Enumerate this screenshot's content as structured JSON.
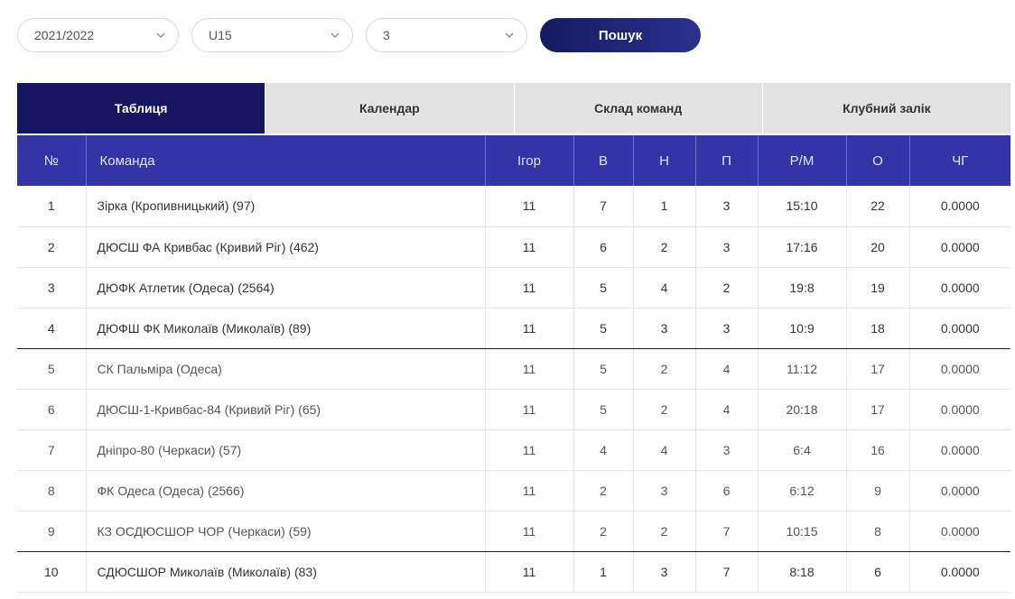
{
  "filters": {
    "season": "2021/2022",
    "age_group": "U15",
    "group": "3",
    "search_label": "Пошук"
  },
  "tabs": [
    "Таблиця",
    "Календар",
    "Склад команд",
    "Клубний залік"
  ],
  "table": {
    "headers": [
      "№",
      "Команда",
      "Ігор",
      "В",
      "Н",
      "П",
      "Р/М",
      "О",
      "ЧГ"
    ],
    "rows": [
      [
        "1",
        "Зірка (Кропивницький) (97)",
        "11",
        "7",
        "1",
        "3",
        "15:10",
        "22",
        "0.0000"
      ],
      [
        "2",
        "ДЮСШ ФА Кривбас (Кривий Ріг) (462)",
        "11",
        "6",
        "2",
        "3",
        "17:16",
        "20",
        "0.0000"
      ],
      [
        "3",
        "ДЮФК Атлетик (Одеса) (2564)",
        "11",
        "5",
        "4",
        "2",
        "19:8",
        "19",
        "0.0000"
      ],
      [
        "4",
        "ДЮФШ ФК Миколаїв (Миколаїв) (89)",
        "11",
        "5",
        "3",
        "3",
        "10:9",
        "18",
        "0.0000"
      ],
      [
        "5",
        "СК Пальміра (Одеса)",
        "11",
        "5",
        "2",
        "4",
        "11:12",
        "17",
        "0.0000"
      ],
      [
        "6",
        "ДЮСШ-1-Кривбас-84 (Кривий Ріг) (65)",
        "11",
        "5",
        "2",
        "4",
        "20:18",
        "17",
        "0.0000"
      ],
      [
        "7",
        "Дніпро-80 (Черкаси) (57)",
        "11",
        "4",
        "4",
        "3",
        "6:4",
        "16",
        "0.0000"
      ],
      [
        "8",
        "ФК Одеса (Одеса) (2566)",
        "11",
        "2",
        "3",
        "6",
        "6:12",
        "9",
        "0.0000"
      ],
      [
        "9",
        "КЗ ОСДЮСШОР ЧОР (Черкаси) (59)",
        "11",
        "2",
        "2",
        "7",
        "10:15",
        "8",
        "0.0000"
      ],
      [
        "10",
        "СДЮСШОР Миколаїв (Миколаїв) (83)",
        "11",
        "1",
        "3",
        "7",
        "8:18",
        "6",
        "0.0000"
      ]
    ]
  }
}
